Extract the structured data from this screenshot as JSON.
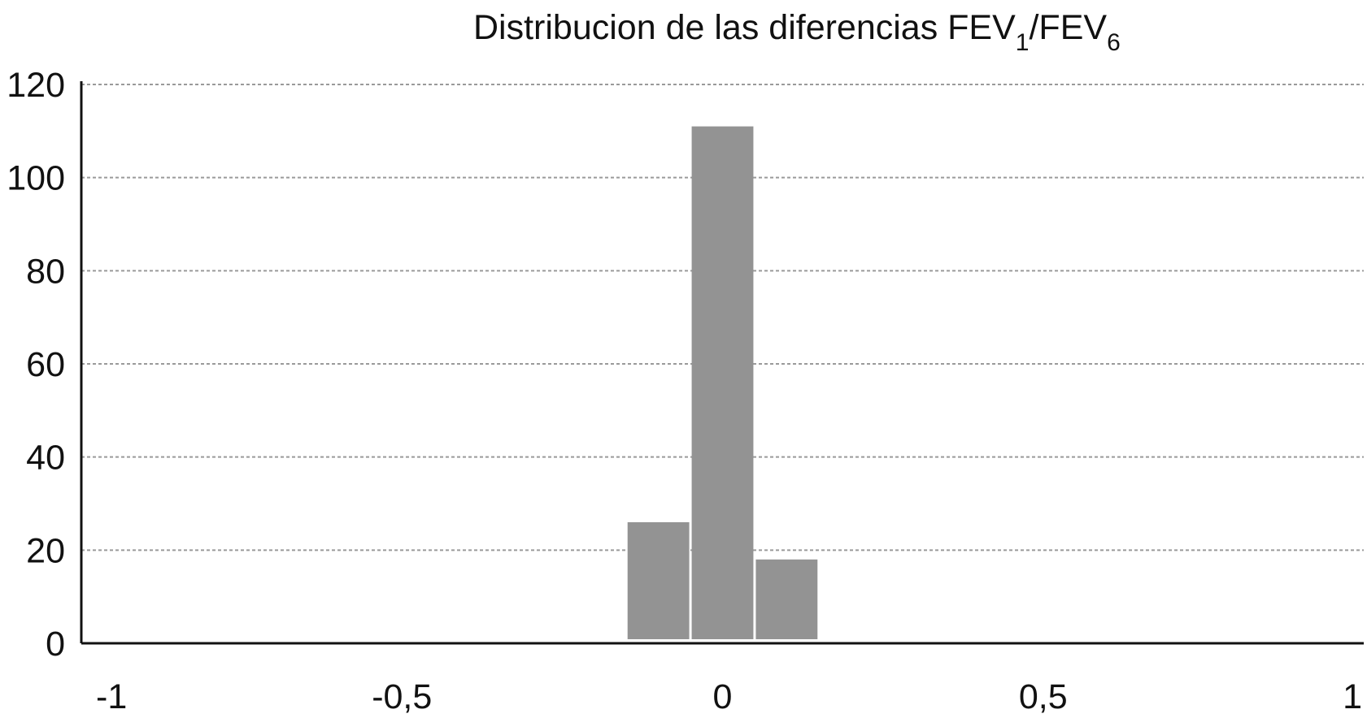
{
  "chart_data": {
    "type": "bar",
    "title": {
      "prefix": "Distribucion de las diferencias FEV",
      "sub1": "1",
      "middle": "/FEV",
      "sub2": "6"
    },
    "xlabel": "",
    "ylabel": "",
    "xlim": [
      -1,
      1
    ],
    "ylim": [
      0,
      120
    ],
    "x_ticks": [
      {
        "value": -1,
        "label": "-1"
      },
      {
        "value": -0.5,
        "label": "-0,5"
      },
      {
        "value": 0,
        "label": "0"
      },
      {
        "value": 0.5,
        "label": "0,5"
      },
      {
        "value": 1,
        "label": "1"
      }
    ],
    "y_ticks": [
      {
        "value": 0,
        "label": "0"
      },
      {
        "value": 20,
        "label": "20"
      },
      {
        "value": 40,
        "label": "40"
      },
      {
        "value": 60,
        "label": "60"
      },
      {
        "value": 80,
        "label": "80"
      },
      {
        "value": 100,
        "label": "100"
      },
      {
        "value": 120,
        "label": "120"
      }
    ],
    "grid": true,
    "legend": "none",
    "bars": [
      {
        "x_start": -0.15,
        "x_end": -0.05,
        "value": 26
      },
      {
        "x_start": -0.05,
        "x_end": 0.05,
        "value": 111
      },
      {
        "x_start": 0.05,
        "x_end": 0.15,
        "value": 18
      }
    ],
    "colors": {
      "bar": "#939393",
      "grid": "#9a9a9a",
      "axis": "#111111"
    }
  }
}
